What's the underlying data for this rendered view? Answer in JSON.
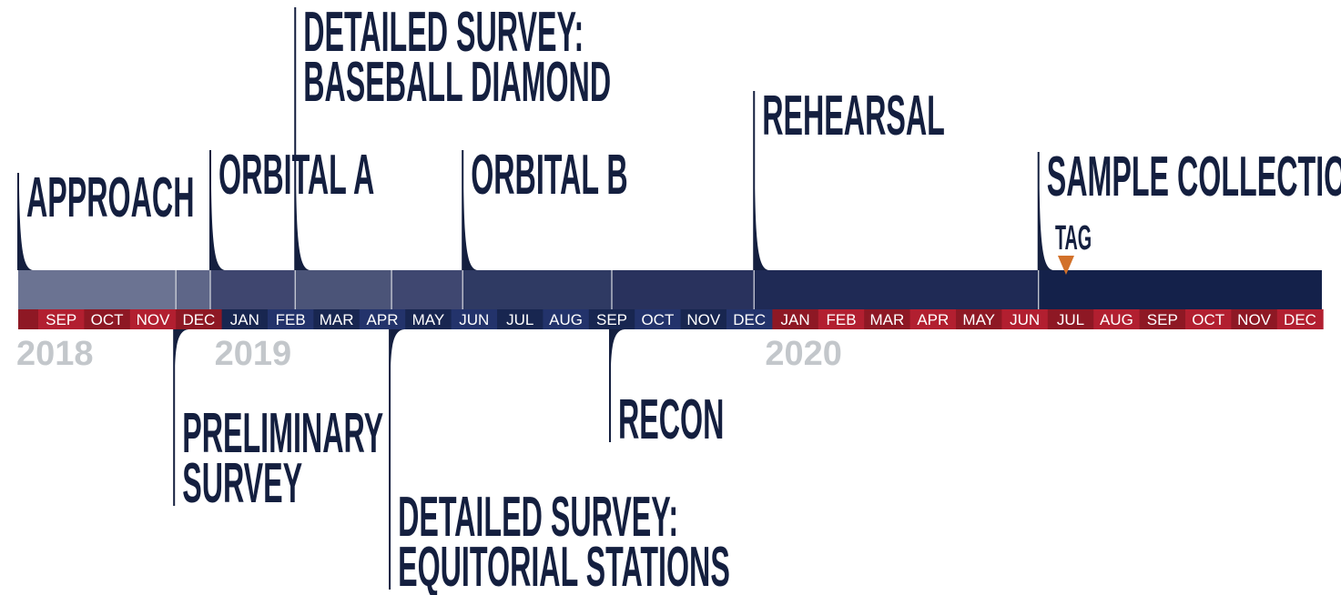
{
  "colors": {
    "month_red": "#b21f30",
    "month_dark_red": "#8e1824",
    "month_navy": "#23336b",
    "month_dark_navy": "#182650",
    "phase_label": "#141f3f",
    "year_label": "#c3c7cb",
    "tag_marker": "#d2712a",
    "phase_bands": [
      "#6b7392",
      "#5e6688",
      "#3f466f",
      "#4b5478",
      "#3f4770",
      "#2f3a63",
      "#29325d",
      "#1f2a55",
      "#14214a"
    ]
  },
  "years": [
    {
      "label": "2018",
      "start_month": 0
    },
    {
      "label": "2019",
      "start_month": 4
    },
    {
      "label": "2020",
      "start_month": 16
    }
  ],
  "months": [
    {
      "label": "SEP",
      "color": "red"
    },
    {
      "label": "OCT",
      "color": "dark_red"
    },
    {
      "label": "NOV",
      "color": "red"
    },
    {
      "label": "DEC",
      "color": "dark_red"
    },
    {
      "label": "JAN",
      "color": "dark_navy"
    },
    {
      "label": "FEB",
      "color": "navy"
    },
    {
      "label": "MAR",
      "color": "dark_navy"
    },
    {
      "label": "APR",
      "color": "navy"
    },
    {
      "label": "MAY",
      "color": "dark_navy"
    },
    {
      "label": "JUN",
      "color": "navy"
    },
    {
      "label": "JUL",
      "color": "dark_navy"
    },
    {
      "label": "AUG",
      "color": "navy"
    },
    {
      "label": "SEP",
      "color": "dark_navy"
    },
    {
      "label": "OCT",
      "color": "navy"
    },
    {
      "label": "NOV",
      "color": "dark_navy"
    },
    {
      "label": "DEC",
      "color": "navy"
    },
    {
      "label": "JAN",
      "color": "dark_red"
    },
    {
      "label": "FEB",
      "color": "red"
    },
    {
      "label": "MAR",
      "color": "dark_red"
    },
    {
      "label": "APR",
      "color": "red"
    },
    {
      "label": "MAY",
      "color": "dark_red"
    },
    {
      "label": "JUN",
      "color": "red"
    },
    {
      "label": "JUL",
      "color": "dark_red"
    },
    {
      "label": "AUG",
      "color": "red"
    },
    {
      "label": "SEP",
      "color": "dark_red"
    },
    {
      "label": "OCT",
      "color": "red"
    },
    {
      "label": "NOV",
      "color": "dark_red"
    },
    {
      "label": "DEC",
      "color": "red"
    }
  ],
  "phases_above": [
    {
      "id": "approach",
      "lines": [
        "APPROACH"
      ],
      "start_month": -0.5
    },
    {
      "id": "orbital-a",
      "lines": [
        "ORBITAL A"
      ],
      "start_month": 3.75
    },
    {
      "id": "detailed-survey-baseball-diamond",
      "lines": [
        "DETAILED SURVEY:",
        "BASEBALL DIAMOND"
      ],
      "start_month": 5.6
    },
    {
      "id": "orbital-b",
      "lines": [
        "ORBITAL B"
      ],
      "start_month": 9.25
    },
    {
      "id": "rehearsal",
      "lines": [
        "REHEARSAL"
      ],
      "start_month": 15.6
    },
    {
      "id": "sample-collection",
      "lines": [
        "SAMPLE COLLECTION"
      ],
      "start_month": 21.8
    }
  ],
  "phases_below": [
    {
      "id": "preliminary-survey",
      "lines": [
        "PRELIMINARY",
        "SURVEY"
      ],
      "start_month": 3.0
    },
    {
      "id": "detailed-survey-equitorial-stations",
      "lines": [
        "DETAILED SURVEY:",
        "EQUITORIAL STATIONS"
      ],
      "start_month": 7.7
    },
    {
      "id": "recon",
      "lines": [
        "RECON"
      ],
      "start_month": 12.5
    }
  ],
  "tag": {
    "label": "TAG",
    "month": 22.4
  }
}
